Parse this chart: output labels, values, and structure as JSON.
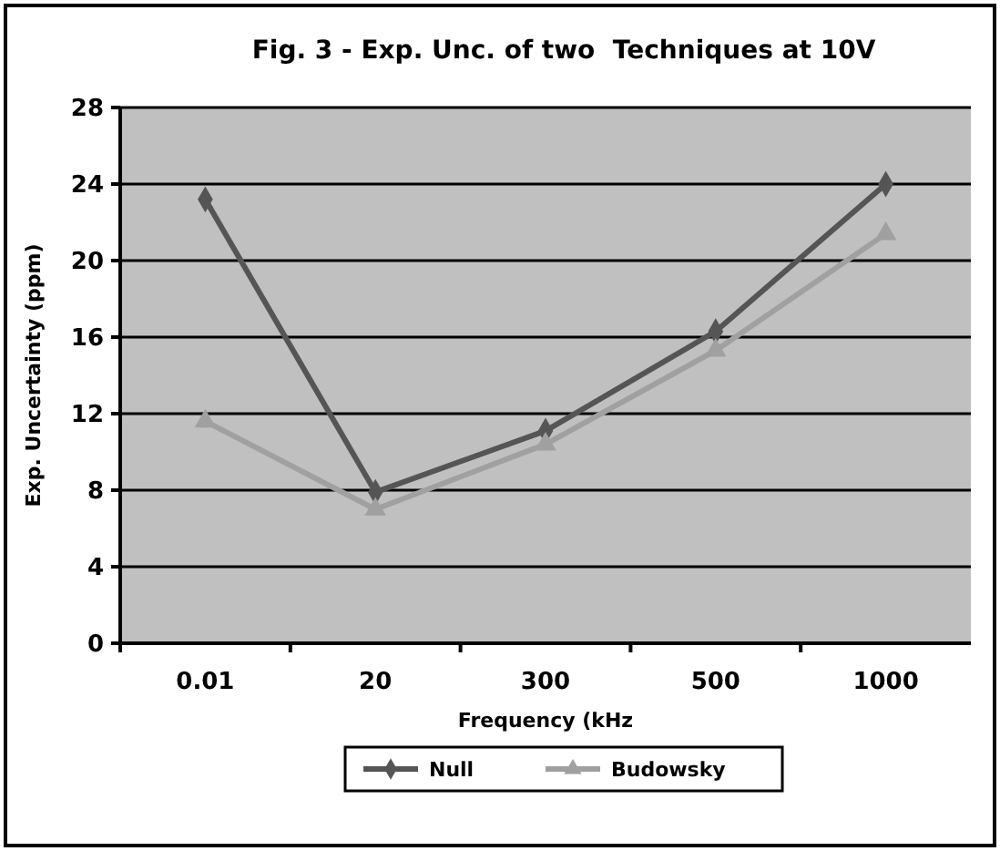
{
  "chart_data": {
    "type": "line",
    "title": "Fig. 3 - Exp. Unc. of two  Techniques at 10V",
    "xlabel": "Frequency (kHz",
    "ylabel": "Exp. Uncertainty (ppm)",
    "categories": [
      "0.01",
      "20",
      "300",
      "500",
      "1000"
    ],
    "series": [
      {
        "name": "Null",
        "color": "#555555",
        "marker": "diamond",
        "values": [
          23.2,
          7.9,
          11.1,
          16.3,
          24
        ]
      },
      {
        "name": "Budowsky",
        "color": "#a0a0a0",
        "marker": "triangle",
        "values": [
          11.6,
          7.0,
          10.4,
          15.3,
          21.4
        ]
      }
    ],
    "ylim": [
      0,
      28
    ],
    "yticks": [
      0,
      4,
      8,
      12,
      16,
      20,
      24,
      28
    ],
    "grid": "y",
    "legend": "bottom"
  }
}
